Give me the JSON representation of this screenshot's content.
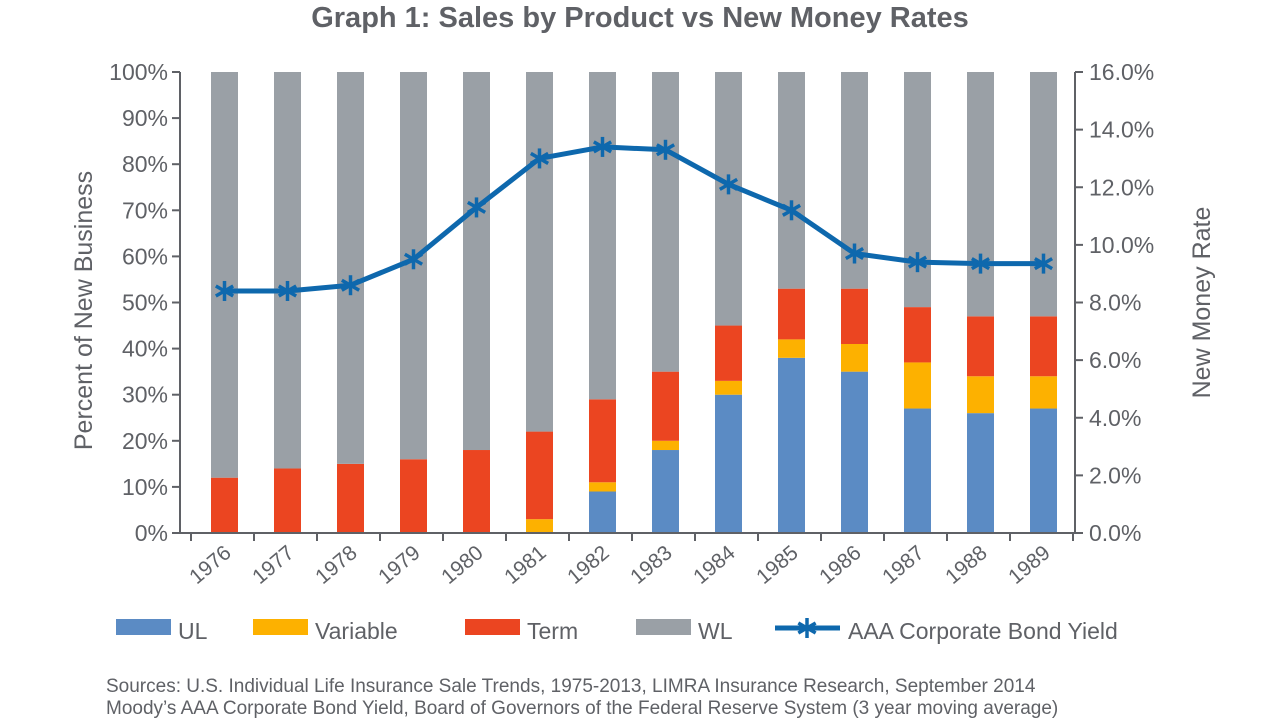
{
  "chart_data": {
    "type": "bar",
    "stacked": true,
    "title": "Graph 1: Sales by Product vs New Money Rates",
    "ylabel": "Percent of New Business",
    "y2label": "New Money Rate",
    "ylim": [
      0,
      100
    ],
    "y2lim": [
      0,
      16
    ],
    "yticks": [
      "0%",
      "10%",
      "20%",
      "30%",
      "40%",
      "50%",
      "60%",
      "70%",
      "80%",
      "90%",
      "100%"
    ],
    "y2ticks": [
      "0.0%",
      "2.0%",
      "4.0%",
      "6.0%",
      "8.0%",
      "10.0%",
      "12.0%",
      "14.0%",
      "16.0%"
    ],
    "categories": [
      "1976",
      "1977",
      "1978",
      "1979",
      "1980",
      "1981",
      "1982",
      "1983",
      "1984",
      "1985",
      "1986",
      "1987",
      "1988",
      "1989"
    ],
    "series": [
      {
        "name": "UL",
        "color": "#5b8bc4",
        "values": [
          0,
          0,
          0,
          0,
          0,
          0,
          9,
          18,
          30,
          38,
          35,
          27,
          26,
          27
        ]
      },
      {
        "name": "Variable",
        "color": "#fdb100",
        "values": [
          0,
          0,
          0,
          0,
          0,
          3,
          2,
          2,
          3,
          4,
          6,
          10,
          8,
          7
        ]
      },
      {
        "name": "Term",
        "color": "#eb4521",
        "values": [
          12,
          14,
          15,
          16,
          18,
          19,
          18,
          15,
          12,
          11,
          12,
          12,
          13,
          13
        ]
      },
      {
        "name": "WL",
        "color": "#9aa0a6",
        "values": [
          88,
          86,
          85,
          84,
          82,
          78,
          71,
          65,
          55,
          47,
          47,
          51,
          53,
          53
        ]
      }
    ],
    "line_series": {
      "name": "AAA Corporate Bond Yield",
      "color": "#0e68ad",
      "axis": "right",
      "marker": "asterisk",
      "values": [
        8.4,
        8.4,
        8.6,
        9.5,
        11.3,
        13.0,
        13.4,
        13.3,
        12.1,
        11.2,
        9.7,
        9.4,
        9.35,
        9.35
      ]
    },
    "grid": false,
    "legend": "bottom"
  },
  "sources": [
    "Sources:  U.S. Individual Life Insurance Sale Trends, 1975-2013, LIMRA Insurance Research, September 2014",
    "Moody’s AAA Corporate Bond Yield, Board of Governors of the Federal Reserve System (3 year moving average)"
  ]
}
